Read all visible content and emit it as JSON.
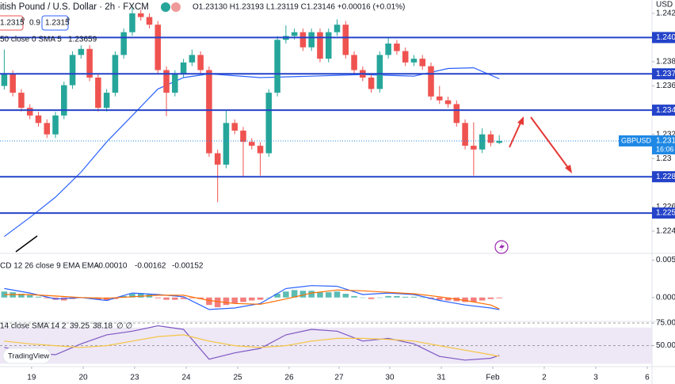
{
  "chart_data": [
    {
      "type": "candlestick",
      "title": "itish Pound / U.S. Dollar · 2h · FXCM",
      "ohlc_text": "O1.23130 H1.23193 L1.23119 C1.23146 +0.00016 (+0.01%)",
      "bid": "1.2315",
      "bid_pip": "0",
      "spread": "0.9",
      "ask": "1.2315",
      "ask_pip": "9",
      "currency": "USD",
      "up_color": "#26a69a",
      "down_color": "#ef5350",
      "open": [
        1.236,
        1.237,
        1.23544,
        1.23419,
        1.23356,
        1.23294,
        1.232,
        1.23356,
        1.23606,
        1.23856,
        1.23906,
        1.23669,
        1.23419,
        1.23544,
        1.23856,
        1.24044,
        1.242,
        1.24169,
        1.24106,
        1.23731,
        1.23544,
        1.237,
        1.23794,
        1.23856,
        1.23731,
        1.23044,
        1.2295,
        1.23294,
        1.23231,
        1.23138,
        1.23106,
        1.23044,
        1.23544,
        1.23981,
        1.24013,
        1.24044,
        1.23919,
        1.24044,
        1.23825,
        1.24044,
        1.24106,
        1.23856,
        1.23731,
        1.23669,
        1.23575,
        1.23856,
        1.2395,
        1.23888,
        1.23794,
        1.23825,
        1.23763,
        1.23513,
        1.23481,
        1.2345,
        1.23294,
        1.23106,
        1.23075,
        1.232,
        1.2313
      ],
      "high": [
        1.239,
        1.2373,
        1.23574,
        1.23449,
        1.23386,
        1.23324,
        1.23386,
        1.23636,
        1.23886,
        1.23936,
        1.23936,
        1.23699,
        1.23574,
        1.23886,
        1.24074,
        1.2425,
        1.2423,
        1.24199,
        1.24136,
        1.23761,
        1.2373,
        1.23824,
        1.239,
        1.23886,
        1.23761,
        1.23074,
        1.234,
        1.23324,
        1.23261,
        1.23168,
        1.23136,
        1.23574,
        1.24011,
        1.241,
        1.24074,
        1.24074,
        1.24074,
        1.24074,
        1.24074,
        1.2415,
        1.24136,
        1.23886,
        1.23761,
        1.23699,
        1.23886,
        1.24,
        1.2398,
        1.23918,
        1.23855,
        1.23855,
        1.23793,
        1.236,
        1.23511,
        1.2348,
        1.23324,
        1.233,
        1.2325,
        1.2323,
        1.23193
      ],
      "low": [
        1.2357,
        1.23514,
        1.23389,
        1.23326,
        1.23264,
        1.2317,
        1.2317,
        1.23326,
        1.23576,
        1.23826,
        1.23639,
        1.23389,
        1.23389,
        1.23514,
        1.23826,
        1.24014,
        1.24139,
        1.24076,
        1.23701,
        1.2335,
        1.23514,
        1.2367,
        1.23764,
        1.23701,
        1.23014,
        1.2264,
        1.2292,
        1.23201,
        1.2285,
        1.23076,
        1.2286,
        1.23014,
        1.23514,
        1.23951,
        1.23983,
        1.23889,
        1.23889,
        1.23795,
        1.23795,
        1.24014,
        1.23826,
        1.23701,
        1.23639,
        1.23545,
        1.23545,
        1.23826,
        1.23858,
        1.23764,
        1.23764,
        1.23733,
        1.23483,
        1.23451,
        1.2342,
        1.23264,
        1.23076,
        1.2286,
        1.23045,
        1.231,
        1.23119
      ],
      "close": [
        1.237,
        1.23544,
        1.23419,
        1.23356,
        1.23294,
        1.232,
        1.23356,
        1.23606,
        1.23856,
        1.23906,
        1.23669,
        1.23419,
        1.23544,
        1.23856,
        1.24044,
        1.242,
        1.24169,
        1.24106,
        1.23731,
        1.23544,
        1.237,
        1.23794,
        1.23856,
        1.23731,
        1.23044,
        1.2295,
        1.23294,
        1.23231,
        1.23138,
        1.23106,
        1.23044,
        1.23544,
        1.23981,
        1.24013,
        1.24044,
        1.23919,
        1.24044,
        1.23825,
        1.24044,
        1.24106,
        1.23856,
        1.23731,
        1.23669,
        1.23575,
        1.23856,
        1.2395,
        1.23888,
        1.23794,
        1.23825,
        1.23763,
        1.23513,
        1.23481,
        1.2345,
        1.23294,
        1.23106,
        1.23075,
        1.232,
        1.2313,
        1.23146
      ],
      "last_label": "1.231",
      "symbol_tag": "GBPUSD",
      "countdown": "16:06",
      "last_color": "#1e88e5",
      "sma": {
        "name": "50 close 0 SMA 5",
        "value_label": "1.23659",
        "color": "#2962ff",
        "x": [
          0,
          3,
          6,
          9,
          12,
          15,
          18,
          21,
          24,
          30,
          36,
          42,
          48,
          52,
          55,
          58
        ],
        "values": [
          1.22356,
          1.22513,
          1.22681,
          1.22888,
          1.23138,
          1.23356,
          1.23575,
          1.23669,
          1.237,
          1.23669,
          1.23681,
          1.23694,
          1.23681,
          1.23744,
          1.2375,
          1.23659
        ]
      },
      "levels": [
        {
          "value": 1.24,
          "label": "1.240"
        },
        {
          "value": 1.237,
          "label": "1.237"
        },
        {
          "value": 1.234,
          "label": "1.234"
        },
        {
          "value": 1.2285,
          "label": "1.228"
        },
        {
          "value": 1.2255,
          "label": "1.225"
        }
      ],
      "level_color": "#2443c9",
      "ylim": [
        1.2223,
        1.2431
      ],
      "yticks": [
        1.242,
        1.238,
        1.236,
        1.232,
        1.23,
        1.226,
        1.224
      ],
      "xlim": [
        -0.5,
        75.9
      ],
      "xticks": [
        {
          "value": 3.2,
          "label": "19"
        },
        {
          "value": 9.25,
          "label": "20"
        },
        {
          "value": 15.28,
          "label": "23"
        },
        {
          "value": 21.32,
          "label": "24"
        },
        {
          "value": 27.35,
          "label": "25"
        },
        {
          "value": 33.38,
          "label": "26"
        },
        {
          "value": 39.23,
          "label": "27"
        },
        {
          "value": 45.17,
          "label": "30"
        },
        {
          "value": 51.21,
          "label": "31"
        },
        {
          "value": 57.24,
          "label": "Feb"
        },
        {
          "value": 63.27,
          "label": "2"
        },
        {
          "value": 69.31,
          "label": "3"
        },
        {
          "value": 75.34,
          "label": "6"
        }
      ]
    },
    {
      "type": "macd",
      "title": "CD 12 26 close 9 EMA EMA",
      "histogram": {
        "value_label": "-0.00010",
        "up_color": "#26a69a",
        "down_color": "#ef5350",
        "values": [
          0.0008,
          0.0007,
          0.0005,
          0.0003,
          0.0001,
          -0.0001,
          -0.0003,
          -0.0004,
          -0.0002,
          0,
          -0.0001,
          -0.0003,
          -0.0004,
          -0.0002,
          0.0002,
          0.0005,
          0.0006,
          0.0004,
          -0.0001,
          -0.0003,
          -0.0003,
          -0.0002,
          -0.0001,
          -0.0002,
          -0.001,
          -0.0013,
          -0.001,
          -0.0008,
          -0.0006,
          -0.0004,
          -0.0003,
          0,
          0.0005,
          0.0008,
          0.001,
          0.0009,
          0.0009,
          0.0007,
          0.0007,
          0.0008,
          0.0005,
          0.0002,
          0,
          -0.0002,
          0,
          0.0002,
          0.0002,
          0.0001,
          0.0001,
          0,
          -0.0002,
          -0.0003,
          -0.0004,
          -0.0005,
          -0.0006,
          -0.0006,
          -0.0004,
          -0.0002,
          -0.0001
        ]
      },
      "series": [
        {
          "value_label": "-0.00162",
          "color": "#2962ff",
          "x": [
            0,
            3,
            6,
            9,
            12,
            15,
            18,
            21,
            24,
            27,
            30,
            33,
            36,
            39,
            42,
            45,
            48,
            51,
            54,
            57,
            58
          ],
          "values": [
            0.0012,
            0.0006,
            -0.0002,
            0,
            -0.0004,
            0.0006,
            0.0004,
            0.0001,
            -0.0016,
            -0.0014,
            -0.0008,
            0.0012,
            0.0016,
            0.0015,
            0.0004,
            0.0006,
            0.0004,
            -0.0004,
            -0.001,
            -0.0014,
            -0.00162
          ]
        },
        {
          "value_label": "-0.00152",
          "color": "#ff6d00",
          "x": [
            0,
            3,
            6,
            9,
            12,
            15,
            18,
            21,
            24,
            27,
            30,
            33,
            36,
            39,
            42,
            45,
            48,
            51,
            54,
            57,
            58
          ],
          "values": [
            0.0004,
            0.0004,
            0.0002,
            0,
            -0.0001,
            0.0001,
            0.0003,
            0.0003,
            -0.0004,
            -0.0008,
            -0.0009,
            -0.0002,
            0.0006,
            0.001,
            0.0009,
            0.0007,
            0.0005,
            0.0001,
            -0.0004,
            -0.001,
            -0.00152
          ]
        }
      ],
      "ylim": [
        -0.0031,
        0.0057
      ],
      "yticks": [
        0.005,
        {
          "value": 0,
          "label": "0.000"
        }
      ]
    },
    {
      "type": "rsi",
      "title": "14 close SMA 14 2",
      "extra": "∅ ∅",
      "band": [
        70,
        30
      ],
      "band_color": "#ede7f6",
      "series": [
        {
          "value_label": "39.25",
          "color": "#7e57c2",
          "x": [
            0,
            3,
            6,
            9,
            12,
            15,
            18,
            21,
            24,
            27,
            30,
            33,
            36,
            39,
            42,
            45,
            48,
            51,
            54,
            57,
            58
          ],
          "values": [
            48,
            42,
            40,
            52,
            62,
            66,
            72,
            68,
            35,
            42,
            47,
            62,
            68,
            66,
            55,
            58,
            52,
            38,
            34,
            36,
            39.25
          ]
        },
        {
          "value_label": "38.18",
          "color": "#f5c542",
          "x": [
            0,
            3,
            6,
            9,
            12,
            15,
            18,
            21,
            24,
            27,
            30,
            33,
            36,
            39,
            42,
            45,
            48,
            51,
            54,
            57,
            58
          ],
          "values": [
            55,
            52,
            50,
            48,
            50,
            55,
            60,
            62,
            55,
            50,
            48,
            50,
            55,
            58,
            58,
            57,
            55,
            50,
            45,
            40,
            38.18
          ]
        }
      ],
      "ylim": [
        27.7,
        75.9
      ],
      "yticks": [
        {
          "value": 75,
          "label": "75.00"
        },
        {
          "value": 50,
          "label": "50.00"
        }
      ]
    }
  ],
  "logo": "TradingView"
}
